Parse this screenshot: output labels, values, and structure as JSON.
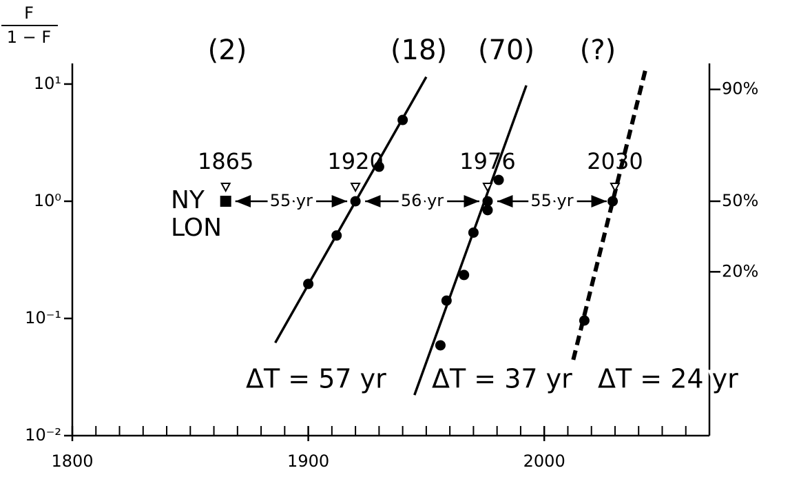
{
  "chart_data": {
    "type": "scatter",
    "log_y": true,
    "ylabel": {
      "numerator": "F",
      "denominator": "1 − F"
    },
    "xlim": [
      1800,
      2070
    ],
    "xticks": [
      1800,
      1900,
      2000
    ],
    "xminorticks": [
      1810,
      1820,
      1830,
      1840,
      1850,
      1860,
      1870,
      1880,
      1890,
      1910,
      1920,
      1930,
      1940,
      1950,
      1960,
      1970,
      1980,
      1990,
      2010,
      2020,
      2030,
      2040,
      2050,
      2060
    ],
    "ylim": [
      0.01,
      15
    ],
    "yticks": [
      {
        "value": 10,
        "label": "10¹"
      },
      {
        "value": 1,
        "label": "10⁰"
      },
      {
        "value": 0.1,
        "label": "10⁻¹"
      },
      {
        "value": 0.01,
        "label": "10⁻²"
      }
    ],
    "y2scale": "logit-percent",
    "y2lim": [
      0.99,
      93.75
    ],
    "y2ticks": [
      {
        "value": 90,
        "label": "90%"
      },
      {
        "value": 50,
        "label": "50%"
      },
      {
        "value": 20,
        "label": "20%"
      }
    ],
    "color": "#000000",
    "series": [
      {
        "name": "(2)",
        "marker": "square",
        "point_label": [
          "NY",
          "LON"
        ],
        "x": [
          1865
        ],
        "values": [
          1
        ]
      },
      {
        "name": "(18)",
        "marker": "circle",
        "x": [
          1900,
          1912,
          1920,
          1930,
          1940
        ],
        "values": [
          0.197,
          0.51,
          1,
          1.97,
          4.94
        ],
        "fit": {
          "x": [
            1886,
            1950
          ],
          "values": [
            0.062,
            11.5
          ]
        },
        "dashed": false,
        "delta_label": "ΔT = 57 yr"
      },
      {
        "name": "(70)",
        "marker": "circle",
        "x": [
          1956,
          1958.6,
          1966,
          1970,
          1976,
          1976,
          1980.7
        ],
        "values": [
          0.059,
          0.142,
          0.235,
          0.54,
          0.84,
          1,
          1.52
        ],
        "fit": {
          "x": [
            1945,
            1992.4
          ],
          "values": [
            0.0222,
            9.73
          ]
        },
        "dashed": false,
        "delta_label": "ΔT = 37 yr"
      },
      {
        "name": "(?)",
        "marker": "circle",
        "x": [
          2017,
          2029
        ],
        "values": [
          0.096,
          1
        ],
        "fit": {
          "x": [
            2012.3,
            2043
          ],
          "values": [
            0.0444,
            13.5
          ]
        },
        "dashed": true,
        "delta_label": "ΔT = 24 yr"
      }
    ],
    "midpoints": [
      1865,
      1920,
      1976,
      2030
    ],
    "interval_labels": [
      "55 yr",
      "56 yr",
      "55 yr"
    ]
  }
}
